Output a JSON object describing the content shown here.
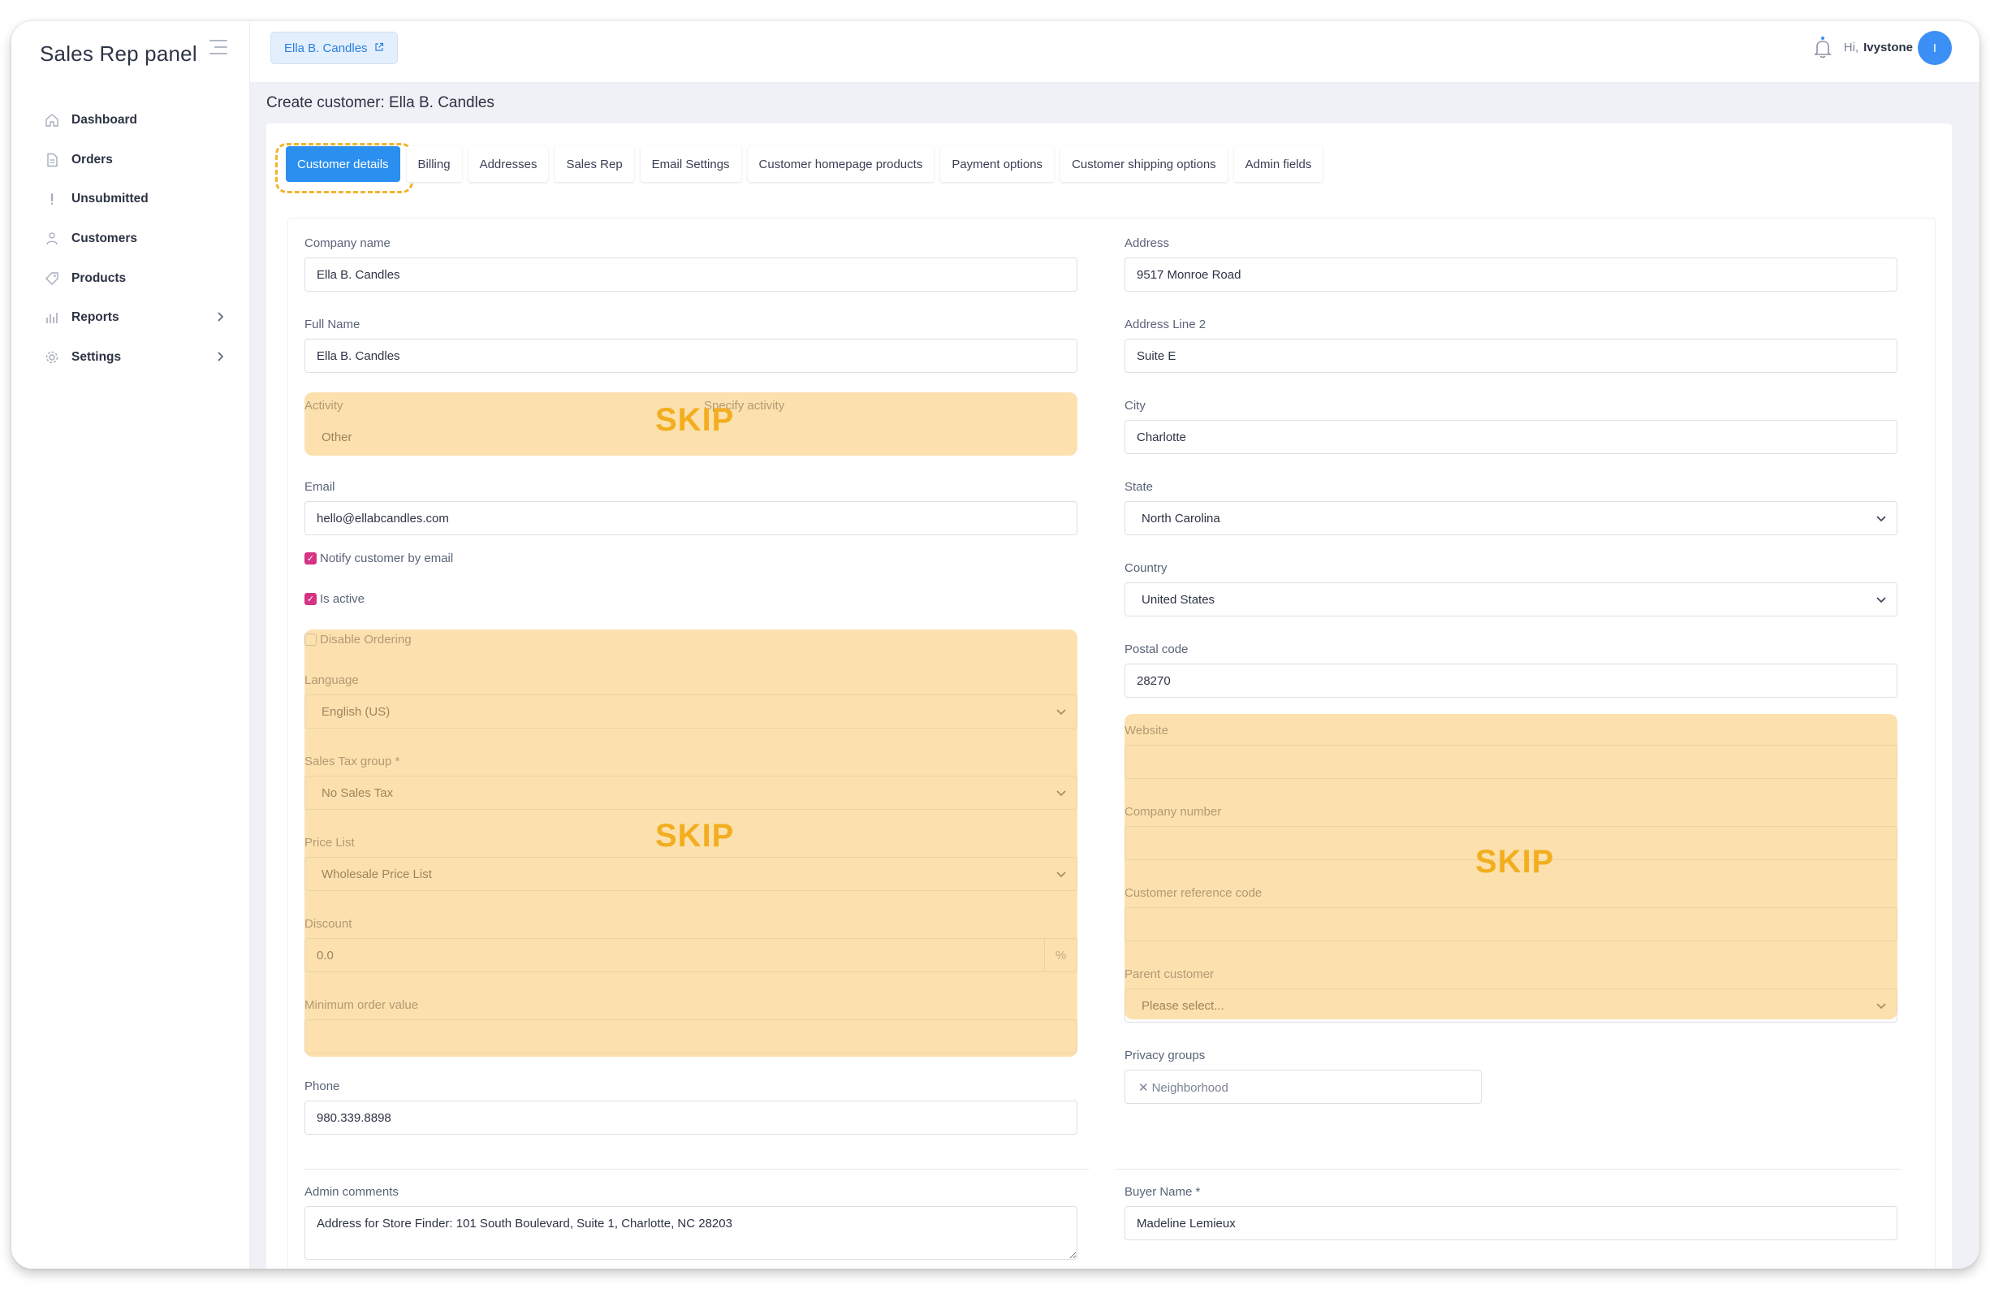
{
  "sidebar": {
    "brand": "Sales Rep panel",
    "items": [
      {
        "label": "Dashboard",
        "icon": "home-icon"
      },
      {
        "label": "Orders",
        "icon": "document-icon"
      },
      {
        "label": "Unsubmitted",
        "icon": "exclamation-icon"
      },
      {
        "label": "Customers",
        "icon": "users-icon"
      },
      {
        "label": "Products",
        "icon": "tag-icon"
      },
      {
        "label": "Reports",
        "icon": "bar-chart-icon"
      },
      {
        "label": "Settings",
        "icon": "gear-icon"
      }
    ]
  },
  "topbar": {
    "customer_chip": "Ella B. Candles",
    "greeting": "Hi,",
    "username": "Ivystone",
    "avatar_initial": "I"
  },
  "page": {
    "title": "Create customer: Ella B. Candles"
  },
  "tabs": [
    "Customer details",
    "Billing",
    "Addresses",
    "Sales Rep",
    "Email Settings",
    "Customer homepage products",
    "Payment options",
    "Customer shipping options",
    "Admin fields"
  ],
  "form": {
    "company_name": {
      "label": "Company name",
      "value": "Ella B. Candles"
    },
    "full_name": {
      "label": "Full Name",
      "value": "Ella B. Candles"
    },
    "activity": {
      "label": "Activity",
      "value": "Other",
      "specify_label": "Specify activity"
    },
    "email": {
      "label": "Email",
      "value": "hello@ellabcandles.com"
    },
    "notify": {
      "label": "Notify customer by email",
      "checked": true
    },
    "is_active": {
      "label": "Is active",
      "checked": true
    },
    "disable_ordering": {
      "label": "Disable Ordering",
      "checked": false
    },
    "language": {
      "label": "Language",
      "value": "English (US)"
    },
    "sales_tax_group": {
      "label": "Sales Tax group",
      "required": "*",
      "value": "No Sales Tax"
    },
    "price_list": {
      "label": "Price List",
      "value": "Wholesale Price List"
    },
    "discount": {
      "label": "Discount",
      "value": "0.0",
      "unit": "%"
    },
    "minimum_order": {
      "label": "Minimum order value",
      "value": ""
    },
    "phone": {
      "label": "Phone",
      "value": "980.339.8898"
    },
    "admin_comments": {
      "label": "Admin comments",
      "value": "Address for Store Finder: 101 South Boulevard, Suite 1, Charlotte, NC 28203"
    },
    "address": {
      "label": "Address",
      "value": "9517 Monroe Road"
    },
    "address2": {
      "label": "Address Line 2",
      "value": "Suite E"
    },
    "city": {
      "label": "City",
      "value": "Charlotte"
    },
    "state": {
      "label": "State",
      "value": "North Carolina"
    },
    "country": {
      "label": "Country",
      "value": "United States"
    },
    "postal_code": {
      "label": "Postal code",
      "value": "28270"
    },
    "website": {
      "label": "Website",
      "value": ""
    },
    "company_number": {
      "label": "Company number",
      "value": ""
    },
    "customer_reference": {
      "label": "Customer reference code",
      "value": ""
    },
    "parent_customer": {
      "label": "Parent customer",
      "value": "Please select..."
    },
    "privacy_groups": {
      "label": "Privacy groups",
      "tags": [
        "Neighborhood"
      ]
    },
    "buyer_name": {
      "label": "Buyer Name",
      "required": "*",
      "value": "Madeline Lemieux"
    }
  },
  "overlays": {
    "skip_label": "SKIP"
  },
  "colors": {
    "accent": "#2a8fef",
    "checkbox": "#d63384",
    "skip_overlay": "#fac86e",
    "skip_text": "#f2ae1f"
  }
}
